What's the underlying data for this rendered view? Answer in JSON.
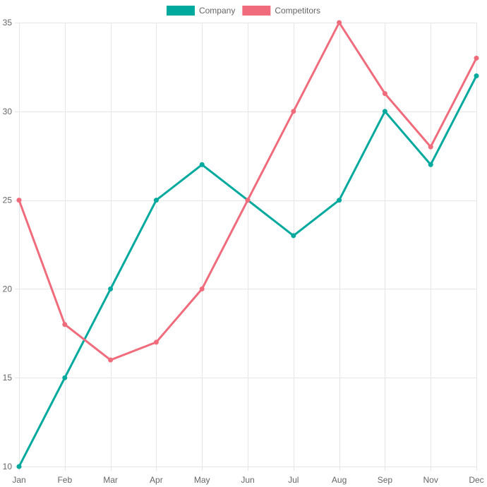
{
  "chart_data": {
    "type": "line",
    "title": "",
    "xlabel": "",
    "ylabel": "",
    "categories": [
      "Jan",
      "Feb",
      "Mar",
      "Apr",
      "May",
      "Jun",
      "Jul",
      "Aug",
      "Sep",
      "Nov",
      "Dec"
    ],
    "ylim": [
      10,
      35
    ],
    "yticks": [
      10,
      15,
      20,
      25,
      30,
      35
    ],
    "grid": true,
    "legend_position": "top-center",
    "series": [
      {
        "name": "Company",
        "color": "#00a99d",
        "values": [
          10,
          15,
          20,
          25,
          27,
          25,
          23,
          25,
          30,
          27,
          32
        ]
      },
      {
        "name": "Competitors",
        "color": "#f06c7c",
        "values": [
          25,
          18,
          16,
          17,
          20,
          25,
          30,
          35,
          31,
          28,
          33
        ]
      }
    ]
  }
}
